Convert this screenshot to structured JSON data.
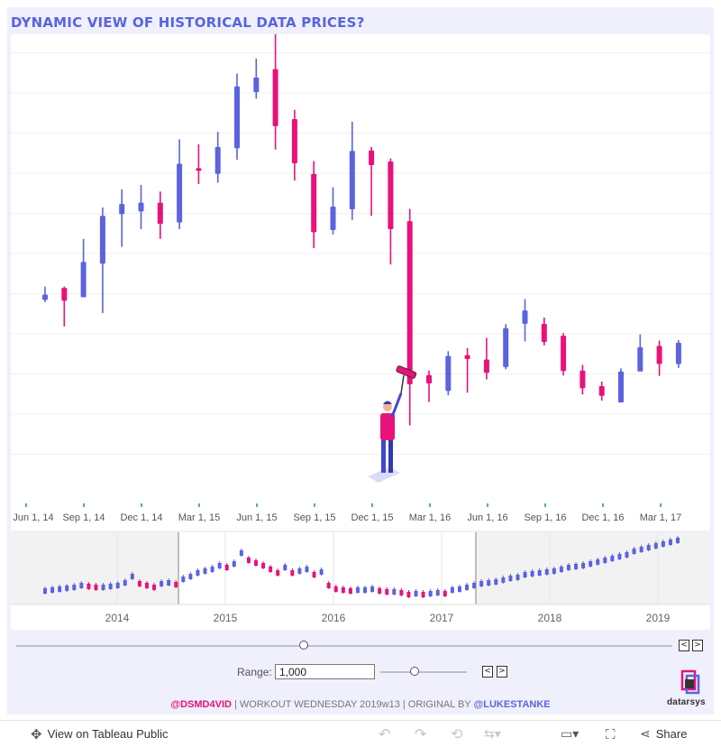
{
  "title": "DYNAMIC VIEW OF HISTORICAL DATA PRICES?",
  "colors": {
    "up": "#5a63e0",
    "down": "#e8127a",
    "accent": "#5a63e0",
    "background": "#eff0fb"
  },
  "chart_data": [
    {
      "type": "candlestick",
      "title": "",
      "x_ticks": [
        "Jun 1, 14",
        "Sep 1, 14",
        "Dec 1, 14",
        "Mar 1, 15",
        "Jun 1, 15",
        "Sep 1, 15",
        "Dec 1, 15",
        "Mar 1, 16",
        "Jun 1, 16",
        "Sep 1, 16",
        "Dec 1, 16",
        "Mar 1, 17"
      ],
      "ylim": [
        0,
        100
      ],
      "grid": true,
      "candles": [
        {
          "i": 0,
          "open": 44.0,
          "close": 45.2,
          "high": 47.0,
          "low": 43.5,
          "dir": "up"
        },
        {
          "i": 1,
          "open": 46.7,
          "close": 43.8,
          "high": 47.0,
          "low": 38.0,
          "dir": "down"
        },
        {
          "i": 2,
          "open": 44.6,
          "close": 52.6,
          "high": 57.8,
          "low": 44.6,
          "dir": "up"
        },
        {
          "i": 3,
          "open": 52.2,
          "close": 63.0,
          "high": 64.9,
          "low": 41.0,
          "dir": "up"
        },
        {
          "i": 4,
          "open": 63.4,
          "close": 65.7,
          "high": 69.0,
          "low": 56.0,
          "dir": "up"
        },
        {
          "i": 5,
          "open": 64.0,
          "close": 66.0,
          "high": 70.0,
          "low": 60.0,
          "dir": "up"
        },
        {
          "i": 6,
          "open": 66.0,
          "close": 61.2,
          "high": 68.5,
          "low": 57.8,
          "dir": "down"
        },
        {
          "i": 7,
          "open": 61.5,
          "close": 74.8,
          "high": 80.3,
          "low": 60.0,
          "dir": "up"
        },
        {
          "i": 8,
          "open": 73.8,
          "close": 73.4,
          "high": 79.2,
          "low": 70.2,
          "dir": "down"
        },
        {
          "i": 9,
          "open": 72.5,
          "close": 78.6,
          "high": 82.0,
          "low": 70.5,
          "dir": "up"
        },
        {
          "i": 10,
          "open": 78.3,
          "close": 92.3,
          "high": 95.2,
          "low": 75.7,
          "dir": "up"
        },
        {
          "i": 11,
          "open": 91.0,
          "close": 94.3,
          "high": 98.6,
          "low": 89.5,
          "dir": "up"
        },
        {
          "i": 12,
          "open": 96.2,
          "close": 83.3,
          "high": 105.5,
          "low": 78.0,
          "dir": "down"
        },
        {
          "i": 13,
          "open": 84.9,
          "close": 74.9,
          "high": 87.0,
          "low": 71.0,
          "dir": "down"
        },
        {
          "i": 14,
          "open": 72.5,
          "close": 59.3,
          "high": 75.4,
          "low": 55.7,
          "dir": "down"
        },
        {
          "i": 15,
          "open": 59.8,
          "close": 65.1,
          "high": 69.5,
          "low": 58.8,
          "dir": "up"
        },
        {
          "i": 16,
          "open": 64.5,
          "close": 77.7,
          "high": 84.3,
          "low": 62.1,
          "dir": "up"
        },
        {
          "i": 17,
          "open": 77.8,
          "close": 74.5,
          "high": 78.6,
          "low": 63.0,
          "dir": "down"
        },
        {
          "i": 18,
          "open": 75.3,
          "close": 60.0,
          "high": 76.0,
          "low": 52.0,
          "dir": "down"
        },
        {
          "i": 19,
          "open": 61.8,
          "close": 24.9,
          "high": 64.6,
          "low": 15.6,
          "dir": "down"
        },
        {
          "i": 20,
          "open": 27.0,
          "close": 25.1,
          "high": 28.0,
          "low": 20.9,
          "dir": "down"
        },
        {
          "i": 21,
          "open": 23.4,
          "close": 31.3,
          "high": 32.4,
          "low": 22.4,
          "dir": "up"
        },
        {
          "i": 22,
          "open": 31.5,
          "close": 30.6,
          "high": 33.1,
          "low": 23.0,
          "dir": "down"
        },
        {
          "i": 23,
          "open": 30.5,
          "close": 27.5,
          "high": 35.4,
          "low": 26.0,
          "dir": "down"
        },
        {
          "i": 24,
          "open": 28.8,
          "close": 37.6,
          "high": 38.5,
          "low": 28.3,
          "dir": "up"
        },
        {
          "i": 25,
          "open": 38.6,
          "close": 41.6,
          "high": 44.2,
          "low": 34.6,
          "dir": "up"
        },
        {
          "i": 26,
          "open": 38.6,
          "close": 34.5,
          "high": 40.0,
          "low": 33.7,
          "dir": "down"
        },
        {
          "i": 27,
          "open": 35.9,
          "close": 27.9,
          "high": 36.5,
          "low": 26.9,
          "dir": "down"
        },
        {
          "i": 28,
          "open": 28.0,
          "close": 24.0,
          "high": 29.3,
          "low": 22.6,
          "dir": "down"
        },
        {
          "i": 29,
          "open": 24.5,
          "close": 22.3,
          "high": 25.5,
          "low": 21.2,
          "dir": "down"
        },
        {
          "i": 30,
          "open": 20.8,
          "close": 27.8,
          "high": 28.5,
          "low": 20.8,
          "dir": "up"
        },
        {
          "i": 31,
          "open": 27.8,
          "close": 33.3,
          "high": 36.2,
          "low": 27.8,
          "dir": "up"
        },
        {
          "i": 32,
          "open": 33.6,
          "close": 29.5,
          "high": 34.8,
          "low": 26.8,
          "dir": "down"
        },
        {
          "i": 33,
          "open": 29.5,
          "close": 34.3,
          "high": 34.9,
          "low": 28.6,
          "dir": "up"
        }
      ]
    },
    {
      "type": "candlestick",
      "title": "",
      "x_ticks": [
        "2014",
        "2015",
        "2016",
        "2017",
        "2018",
        "2019"
      ],
      "window": [
        "Jun 1, 14",
        "Mar 1, 17"
      ]
    }
  ],
  "controls": {
    "range_label": "Range:",
    "range_value": "1,000",
    "prev": "<",
    "next": ">"
  },
  "footer": {
    "part1": "@DSMD4VID",
    "part2": " | WORKOUT WEDNESDAY 2019w13 | ORIGINAL BY ",
    "part3": "@LUKESTANKE"
  },
  "logo_text": "datarsys",
  "toolbar": {
    "view_on": "View on Tableau Public",
    "share": "Share"
  }
}
